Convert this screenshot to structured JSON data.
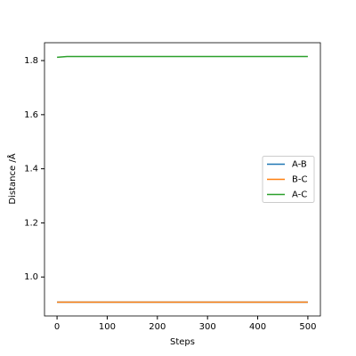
{
  "chart_data": {
    "type": "line",
    "x_label": "Steps",
    "y_label": "Distance /Å",
    "x": [
      0,
      20,
      100,
      200,
      300,
      400,
      500
    ],
    "series": [
      {
        "name": "A-B",
        "color": "#1f77b4",
        "values": [
          0.907,
          0.907,
          0.907,
          0.907,
          0.907,
          0.907,
          0.907
        ]
      },
      {
        "name": "B-C",
        "color": "#ff7f0e",
        "values": [
          0.907,
          0.907,
          0.907,
          0.907,
          0.907,
          0.907,
          0.907
        ]
      },
      {
        "name": "A-C",
        "color": "#2ca02c",
        "values": [
          1.812,
          1.815,
          1.815,
          1.815,
          1.815,
          1.815,
          1.815
        ]
      }
    ],
    "xlim": [
      -25,
      525
    ],
    "xticks": [
      0,
      100,
      200,
      300,
      400,
      500
    ],
    "ylim": [
      0.856,
      1.866
    ],
    "yticks": [
      {
        "value": 1.0,
        "label": "1.0"
      },
      1.2,
      1.4,
      1.6,
      1.8
    ],
    "legend": "right"
  }
}
